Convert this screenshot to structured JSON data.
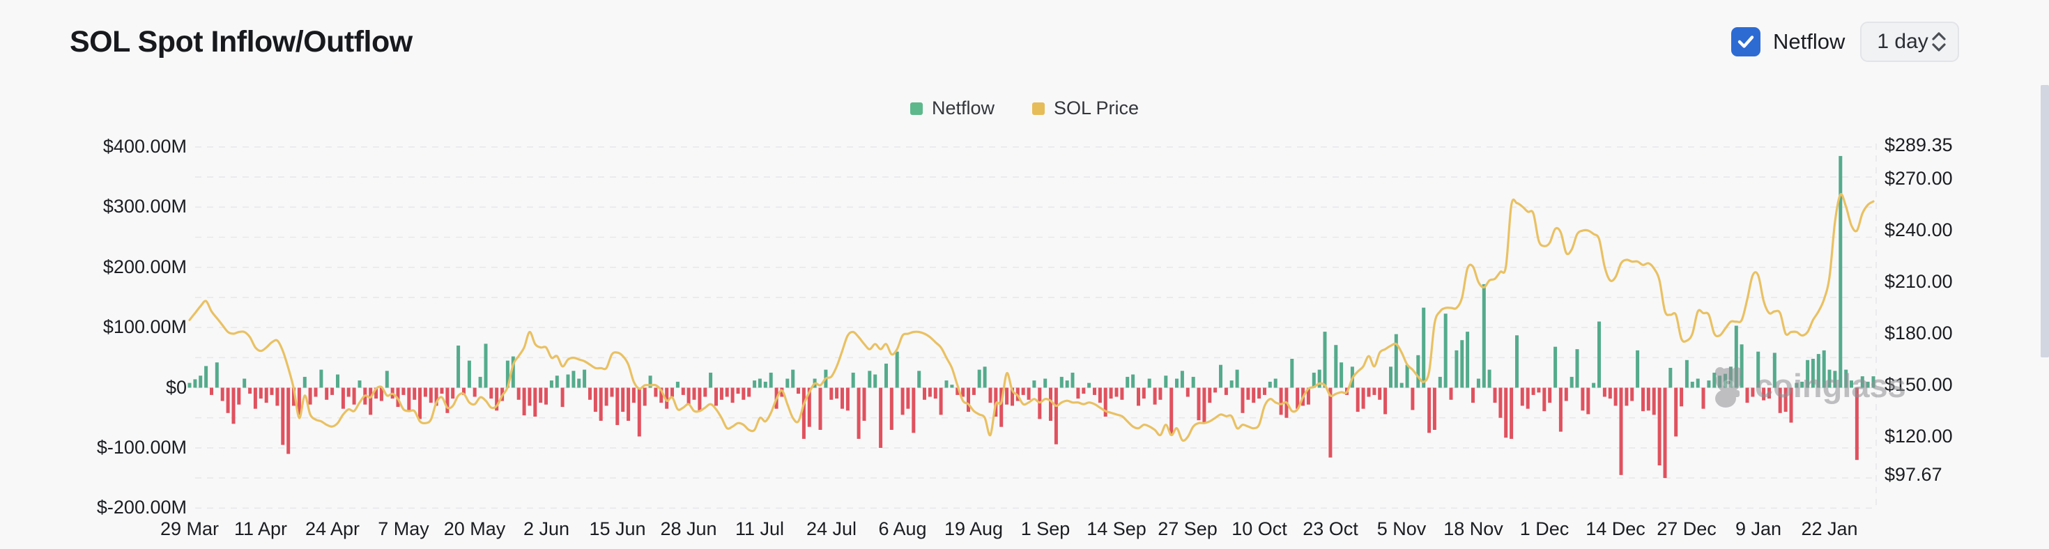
{
  "header": {
    "title": "SOL Spot Inflow/Outflow",
    "netflow_toggle_label": "Netflow",
    "netflow_toggle_checked": true,
    "interval_selected": "1 day"
  },
  "legend": {
    "items": [
      {
        "label": "Netflow",
        "color": "#5db88c"
      },
      {
        "label": "SOL Price",
        "color": "#e6bc59"
      }
    ]
  },
  "watermark": "coinglass",
  "colors": {
    "accent_blue": "#2d6bd3",
    "bar_positive": "#54ab8c",
    "bar_negative": "#e0515e",
    "price_line": "#e9c162",
    "grid": "#e8e8ea",
    "axis_text": "#1b1d21",
    "scrollbar": "#d2d6e1"
  },
  "chart_data": {
    "type": "bar+line",
    "title": "SOL Spot Inflow/Outflow",
    "x_start": "29 Mar",
    "x_end": "22 Jan",
    "x_tick_labels": [
      "29 Mar",
      "11 Apr",
      "24 Apr",
      "7 May",
      "20 May",
      "2 Jun",
      "15 Jun",
      "28 Jun",
      "11 Jul",
      "24 Jul",
      "6 Aug",
      "19 Aug",
      "1 Sep",
      "14 Sep",
      "27 Sep",
      "10 Oct",
      "23 Oct",
      "5 Nov",
      "18 Nov",
      "1 Dec",
      "14 Dec",
      "27 Dec",
      "9 Jan",
      "22 Jan"
    ],
    "x_tick_interval_days": 13,
    "left_axis": {
      "name": "Netflow",
      "unit": "$M",
      "tick_labels": [
        "$400.00M",
        "$300.00M",
        "$200.00M",
        "$100.00M",
        "$0",
        "$-100.00M",
        "$-200.00M"
      ],
      "tick_values": [
        400,
        300,
        200,
        100,
        0,
        -100,
        -200
      ],
      "minor_grid_step": 50,
      "range": [
        -200,
        400
      ],
      "grid": "dashed"
    },
    "right_axis": {
      "name": "SOL Price",
      "unit": "$",
      "tick_labels": [
        "$289.35",
        "$270.00",
        "$240.00",
        "$210.00",
        "$180.00",
        "$150.00",
        "$120.00",
        "$97.67"
      ],
      "tick_values": [
        289.35,
        270,
        240,
        210,
        180,
        150,
        120,
        97.67
      ],
      "range": [
        97.67,
        289.35
      ]
    },
    "legend_position": "top-center",
    "series": [
      {
        "name": "Netflow",
        "type": "bar",
        "unit": "$M",
        "positive_color": "#54ab8c",
        "negative_color": "#e0515e",
        "values": [
          8,
          14,
          20,
          36,
          -12,
          42,
          -22,
          -42,
          -60,
          -28,
          15,
          -10,
          -35,
          -18,
          -25,
          -12,
          -30,
          -95,
          -110,
          -30,
          -45,
          18,
          -28,
          -15,
          30,
          -20,
          -12,
          22,
          -35,
          -15,
          -28,
          12,
          -28,
          -45,
          -18,
          -22,
          28,
          -18,
          -32,
          -12,
          -38,
          -20,
          -52,
          -15,
          -25,
          -30,
          -10,
          -42,
          -18,
          70,
          -12,
          45,
          -15,
          18,
          73,
          -18,
          -38,
          -22,
          45,
          52,
          -20,
          -46,
          -30,
          -48,
          -25,
          -28,
          12,
          20,
          -32,
          22,
          28,
          15,
          30,
          -20,
          -40,
          -55,
          -30,
          -15,
          -62,
          -40,
          -55,
          -25,
          -81,
          -30,
          20,
          -15,
          -25,
          -35,
          -15,
          10,
          -12,
          -28,
          -20,
          -38,
          -15,
          25,
          -30,
          -20,
          -15,
          -25,
          -10,
          -20,
          -15,
          12,
          15,
          10,
          25,
          -35,
          -15,
          15,
          30,
          -10,
          -85,
          -65,
          15,
          -70,
          30,
          -20,
          -18,
          -35,
          -38,
          25,
          -85,
          -55,
          28,
          22,
          -100,
          40,
          -70,
          60,
          -45,
          -35,
          -75,
          28,
          -20,
          -15,
          -18,
          -45,
          12,
          5,
          -12,
          -15,
          -40,
          -12,
          30,
          35,
          -25,
          -48,
          -65,
          -28,
          -30,
          -22,
          -12,
          -20,
          12,
          -52,
          15,
          -55,
          -94,
          18,
          12,
          25,
          -18,
          -10,
          8,
          -12,
          -25,
          -48,
          -18,
          -15,
          -20,
          18,
          22,
          -30,
          -18,
          15,
          -28,
          -20,
          20,
          -79,
          15,
          28,
          -15,
          18,
          -54,
          -58,
          -25,
          -8,
          38,
          -12,
          12,
          30,
          -42,
          -20,
          -25,
          -18,
          -12,
          10,
          15,
          -45,
          -50,
          48,
          -35,
          -30,
          -28,
          25,
          30,
          93,
          -116,
          71,
          42,
          -12,
          35,
          -40,
          -35,
          -15,
          -12,
          -20,
          -44,
          35,
          89,
          8,
          38,
          -37,
          54,
          133,
          -75,
          -70,
          18,
          123,
          -20,
          62,
          79,
          93,
          -25,
          15,
          172,
          30,
          -25,
          -50,
          -83,
          -85,
          87,
          -30,
          -35,
          -12,
          -8,
          -39,
          -25,
          68,
          -73,
          -22,
          18,
          64,
          -38,
          -44,
          8,
          110,
          -15,
          -18,
          -30,
          -145,
          -30,
          -22,
          62,
          -39,
          -38,
          -45,
          -129,
          -150,
          33,
          -81,
          -31,
          46,
          10,
          15,
          -35,
          12,
          25,
          20,
          23,
          35,
          103,
          72,
          -25,
          -15,
          60,
          -21,
          -18,
          58,
          -42,
          -40,
          -58,
          8,
          10,
          46,
          48,
          56,
          62,
          30,
          28,
          385,
          30,
          12,
          -120,
          19,
          10,
          19
        ]
      },
      {
        "name": "SOL Price",
        "type": "line",
        "unit": "$",
        "color": "#e9c162",
        "values": [
          188,
          192,
          196,
          199,
          193,
          189,
          185,
          181,
          180,
          181,
          181,
          178,
          172,
          170,
          172,
          175,
          176,
          170,
          160,
          148,
          131,
          144,
          133,
          130,
          129,
          127,
          126,
          128,
          133,
          136,
          135,
          140,
          144,
          143,
          148,
          149,
          144,
          145,
          142,
          136,
          135,
          135,
          129,
          128,
          130,
          140,
          143,
          137,
          138,
          144,
          145,
          140,
          139,
          143,
          141,
          137,
          138,
          144,
          149,
          162,
          167,
          172,
          181,
          174,
          172,
          172,
          166,
          167,
          161,
          165,
          166,
          165,
          164,
          162,
          160,
          160,
          160,
          168,
          169,
          167,
          162,
          152,
          148,
          150,
          150,
          150,
          147,
          141,
          143,
          136,
          137,
          139,
          135,
          135,
          137,
          139,
          136,
          131,
          125,
          126,
          128,
          127,
          124,
          124,
          131,
          129,
          134,
          142,
          147,
          139,
          131,
          129,
          139,
          146,
          151,
          150,
          154,
          155,
          161,
          170,
          179,
          181,
          178,
          174,
          171,
          174,
          171,
          174,
          168,
          171,
          179,
          180,
          181,
          181,
          180,
          178,
          175,
          172,
          166,
          160,
          150,
          141,
          139,
          135,
          133,
          131,
          121,
          139,
          140,
          157,
          147,
          144,
          139,
          140,
          142,
          140,
          142,
          141,
          138,
          140,
          141,
          140,
          140,
          139,
          140,
          139,
          137,
          135,
          134,
          133,
          132,
          129,
          126,
          125,
          127,
          126,
          124,
          121,
          127,
          121,
          125,
          118,
          120,
          126,
          128,
          128,
          129,
          131,
          133,
          132,
          132,
          125,
          127,
          126,
          125,
          127,
          138,
          142,
          140,
          139,
          140,
          135,
          136,
          143,
          148,
          149,
          151,
          150,
          144,
          145,
          146,
          146,
          154,
          158,
          161,
          167,
          161,
          169,
          171,
          173,
          174,
          169,
          162,
          159,
          155,
          152,
          158,
          186,
          193,
          195,
          195,
          195,
          201,
          218,
          219,
          210,
          207,
          211,
          212,
          216,
          219,
          255,
          256,
          254,
          251,
          250,
          234,
          231,
          233,
          241,
          239,
          227,
          229,
          238,
          240,
          240,
          238,
          235,
          219,
          211,
          213,
          221,
          223,
          222,
          222,
          220,
          221,
          218,
          211,
          193,
          191,
          191,
          177,
          176,
          180,
          193,
          192,
          191,
          180,
          179,
          183,
          187,
          187,
          188,
          200,
          214,
          214,
          199,
          192,
          193,
          192,
          180,
          181,
          181,
          179,
          181,
          188,
          193,
          200,
          213,
          245,
          261,
          254,
          243,
          240,
          250,
          255,
          257
        ]
      }
    ]
  }
}
